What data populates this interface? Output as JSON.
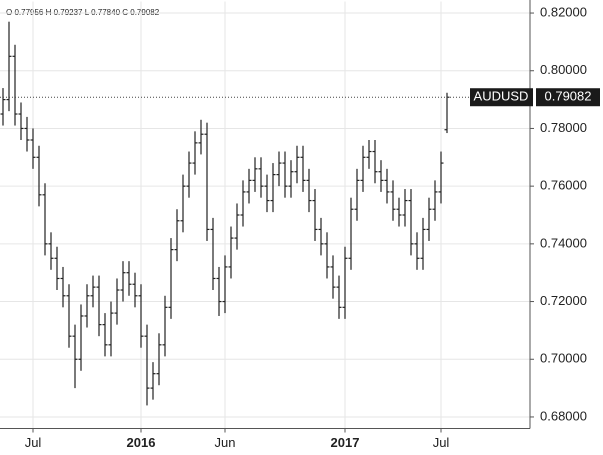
{
  "chart_data": {
    "type": "ohlc",
    "legend_text": "O 0.77956 H 0.79237 L 0.77840 C 0.79082",
    "symbol": "AUDUSD",
    "last_label": "0.79082",
    "categories": [
      null,
      null,
      null,
      null,
      null,
      "Jul",
      null,
      null,
      null,
      null,
      null,
      null,
      null,
      null,
      null,
      null,
      null,
      null,
      null,
      null,
      null,
      null,
      null,
      "2016",
      null,
      null,
      null,
      null,
      null,
      null,
      null,
      null,
      null,
      null,
      null,
      null,
      null,
      "Jun",
      null,
      null,
      null,
      null,
      null,
      null,
      null,
      null,
      null,
      null,
      null,
      null,
      null,
      null,
      null,
      null,
      null,
      null,
      null,
      "2017",
      null,
      null,
      null,
      null,
      null,
      null,
      null,
      null,
      null,
      null,
      null,
      null,
      null,
      null,
      null,
      "Jul",
      null
    ],
    "open": [
      0.785,
      0.79,
      0.805,
      0.785,
      0.78,
      0.776,
      0.77,
      0.757,
      0.74,
      0.735,
      0.728,
      0.722,
      0.708,
      0.7,
      0.715,
      0.722,
      0.725,
      0.712,
      0.705,
      0.716,
      0.724,
      0.73,
      0.726,
      0.722,
      0.708,
      0.69,
      0.695,
      0.705,
      0.718,
      0.738,
      0.748,
      0.76,
      0.768,
      0.775,
      0.778,
      0.745,
      0.728,
      0.72,
      0.732,
      0.742,
      0.75,
      0.758,
      0.762,
      0.766,
      0.76,
      0.755,
      0.764,
      0.768,
      0.76,
      0.765,
      0.77,
      0.762,
      0.755,
      0.745,
      0.74,
      0.732,
      0.725,
      0.718,
      0.735,
      0.752,
      0.762,
      0.77,
      0.772,
      0.765,
      0.762,
      0.758,
      0.752,
      0.75,
      0.755,
      0.74,
      0.735,
      0.745,
      0.752,
      0.758,
      0.77956
    ],
    "high": [
      0.794,
      0.817,
      0.809,
      0.789,
      0.784,
      0.78,
      0.774,
      0.761,
      0.744,
      0.739,
      0.732,
      0.726,
      0.712,
      0.719,
      0.726,
      0.729,
      0.729,
      0.716,
      0.72,
      0.728,
      0.734,
      0.734,
      0.73,
      0.726,
      0.712,
      0.699,
      0.709,
      0.722,
      0.742,
      0.752,
      0.764,
      0.772,
      0.779,
      0.783,
      0.782,
      0.749,
      0.732,
      0.736,
      0.746,
      0.754,
      0.762,
      0.766,
      0.77,
      0.77,
      0.764,
      0.768,
      0.772,
      0.772,
      0.769,
      0.774,
      0.774,
      0.766,
      0.759,
      0.749,
      0.744,
      0.736,
      0.729,
      0.739,
      0.756,
      0.766,
      0.774,
      0.776,
      0.776,
      0.769,
      0.766,
      0.762,
      0.756,
      0.759,
      0.759,
      0.744,
      0.749,
      0.756,
      0.762,
      0.772,
      0.79237
    ],
    "low": [
      0.781,
      0.786,
      0.781,
      0.776,
      0.772,
      0.766,
      0.753,
      0.736,
      0.731,
      0.724,
      0.718,
      0.704,
      0.69,
      0.696,
      0.711,
      0.718,
      0.708,
      0.701,
      0.701,
      0.712,
      0.72,
      0.722,
      0.718,
      0.704,
      0.684,
      0.686,
      0.691,
      0.701,
      0.714,
      0.734,
      0.744,
      0.756,
      0.764,
      0.771,
      0.741,
      0.724,
      0.715,
      0.716,
      0.728,
      0.738,
      0.746,
      0.754,
      0.758,
      0.756,
      0.751,
      0.751,
      0.76,
      0.756,
      0.756,
      0.761,
      0.758,
      0.751,
      0.741,
      0.736,
      0.728,
      0.721,
      0.714,
      0.714,
      0.731,
      0.748,
      0.758,
      0.766,
      0.761,
      0.758,
      0.754,
      0.748,
      0.746,
      0.746,
      0.736,
      0.731,
      0.731,
      0.741,
      0.748,
      0.754,
      0.7784
    ],
    "close": [
      0.79,
      0.805,
      0.785,
      0.78,
      0.776,
      0.77,
      0.757,
      0.74,
      0.735,
      0.728,
      0.722,
      0.708,
      0.7,
      0.715,
      0.722,
      0.725,
      0.712,
      0.705,
      0.716,
      0.724,
      0.73,
      0.726,
      0.722,
      0.708,
      0.69,
      0.695,
      0.705,
      0.718,
      0.738,
      0.748,
      0.76,
      0.768,
      0.775,
      0.778,
      0.745,
      0.728,
      0.72,
      0.732,
      0.742,
      0.75,
      0.758,
      0.762,
      0.766,
      0.76,
      0.755,
      0.764,
      0.768,
      0.76,
      0.765,
      0.77,
      0.762,
      0.755,
      0.745,
      0.74,
      0.732,
      0.725,
      0.718,
      0.735,
      0.752,
      0.762,
      0.77,
      0.772,
      0.765,
      0.762,
      0.758,
      0.752,
      0.75,
      0.755,
      0.74,
      0.735,
      0.745,
      0.752,
      0.758,
      0.768,
      0.79082
    ],
    "color": "#222222",
    "ylim": [
      0.676,
      0.824
    ],
    "yticks": [
      {
        "value": 0.68,
        "label": "0.68000"
      },
      {
        "value": 0.7,
        "label": "0.70000"
      },
      {
        "value": 0.72,
        "label": "0.72000"
      },
      {
        "value": 0.74,
        "label": "0.74000"
      },
      {
        "value": 0.76,
        "label": "0.76000"
      },
      {
        "value": 0.78,
        "label": "0.78000"
      },
      {
        "value": 0.8,
        "label": "0.80000"
      },
      {
        "value": 0.82,
        "label": "0.82000"
      }
    ],
    "grid": true
  }
}
